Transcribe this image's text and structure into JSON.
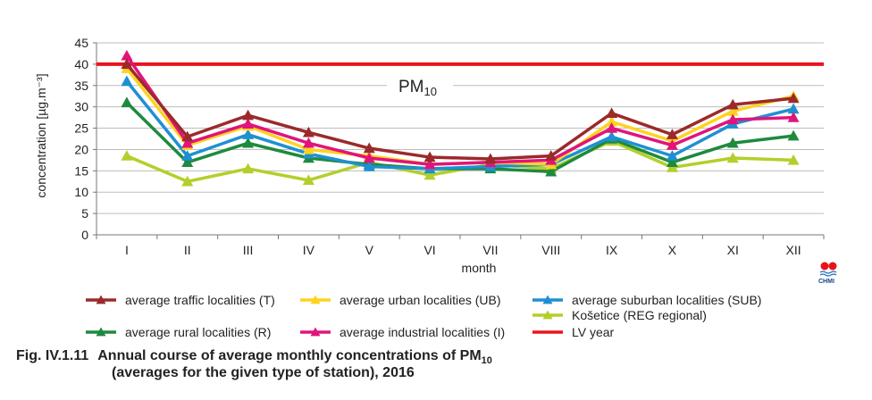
{
  "chart_data": {
    "type": "line",
    "title": "",
    "xlabel": "month",
    "ylabel": "concentration [µg.m⁻³]",
    "ylim": [
      0,
      45
    ],
    "yticks": [
      0,
      5,
      10,
      15,
      20,
      25,
      30,
      35,
      40,
      45
    ],
    "grid": true,
    "legend_position": "bottom",
    "categories": [
      "I",
      "II",
      "III",
      "IV",
      "V",
      "VI",
      "VII",
      "VIII",
      "IX",
      "X",
      "XI",
      "XII"
    ],
    "series": [
      {
        "name": "average traffic localities (T)",
        "color": "#9b2a2a",
        "values": [
          40,
          23,
          28,
          24,
          20.3,
          18.2,
          17.8,
          18.5,
          28.5,
          23.5,
          30.5,
          32
        ]
      },
      {
        "name": "average urban localities (UB)",
        "color": "#ffd21f",
        "values": [
          39,
          21,
          25.5,
          20,
          18.5,
          16.5,
          17,
          16.5,
          26.5,
          22,
          29,
          32.5
        ]
      },
      {
        "name": "average suburban localities (SUB)",
        "color": "#1e90d2",
        "values": [
          36,
          18.5,
          23.5,
          19,
          16,
          15.5,
          16,
          16.5,
          23,
          18.5,
          26,
          29.5
        ]
      },
      {
        "name": "Košetice (REG  regional)",
        "color": "#b3cf2a",
        "values": [
          18.5,
          12.5,
          15.5,
          12.8,
          17,
          14,
          16.5,
          15.5,
          22,
          15.8,
          18,
          17.5
        ]
      },
      {
        "name": "average rural localities (R)",
        "color": "#1e8a3e",
        "values": [
          31,
          17,
          21.5,
          18,
          16.5,
          15.5,
          15.5,
          14.8,
          22.5,
          17,
          21.5,
          23.2
        ]
      },
      {
        "name": "average industrial localities (I)",
        "color": "#e0147c",
        "values": [
          42,
          21.5,
          26,
          21.5,
          18,
          16.5,
          17,
          17.5,
          25,
          21,
          27,
          27.5
        ]
      }
    ],
    "limit_line": {
      "name": "LV  year",
      "value": 40,
      "color": "#e8141c",
      "annotation": "PM10"
    },
    "caption": {
      "prefix": "Fig. IV.1.11",
      "line1": "Annual course of average monthly concentrations of PM",
      "line1_sub": "10",
      "line2": "(averages for the given type of station), 2016"
    },
    "logo_text": "CHMI"
  }
}
